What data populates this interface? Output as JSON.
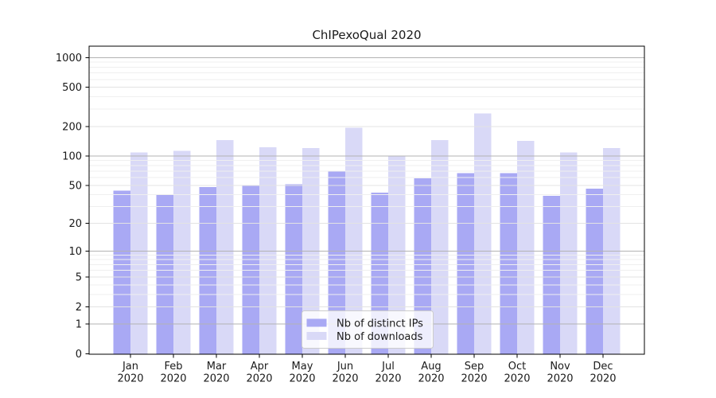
{
  "chart_data": {
    "type": "bar",
    "title": "ChIPexoQual 2020",
    "categories": [
      "Jan",
      "Feb",
      "Mar",
      "Apr",
      "May",
      "Jun",
      "Jul",
      "Aug",
      "Sep",
      "Oct",
      "Nov",
      "Dec"
    ],
    "category_year_line": "2020",
    "series": [
      {
        "name": "Nb of distinct IPs",
        "color": "#a9a9f4",
        "values": [
          44,
          40,
          48,
          50,
          51,
          70,
          42,
          59,
          67,
          67,
          39,
          46
        ]
      },
      {
        "name": "Nb of downloads",
        "color": "#d9d9f7",
        "values": [
          109,
          113,
          146,
          123,
          121,
          194,
          100,
          145,
          272,
          143,
          109,
          120
        ]
      }
    ],
    "y_scale": "log1p",
    "y_ticks": [
      0,
      1,
      2,
      5,
      10,
      20,
      50,
      100,
      200,
      500,
      1000
    ],
    "y_minor_ticks": [
      3,
      4,
      6,
      7,
      8,
      9,
      30,
      40,
      60,
      70,
      80,
      90,
      300,
      400,
      600,
      700,
      800,
      900
    ],
    "ylim": [
      0,
      1300
    ],
    "grid": true,
    "grid_on_top_of_bars": true,
    "legend_position": "lower center",
    "colors": {
      "axis": "#000000",
      "grid_power": "#b3b3b3",
      "grid_major": "#e3e3e3",
      "grid_minor": "#efefef",
      "legend_bg": "rgba(255,255,255,0.8)",
      "legend_border": "#cccccc",
      "tick_label": "#1a1a1a"
    }
  }
}
